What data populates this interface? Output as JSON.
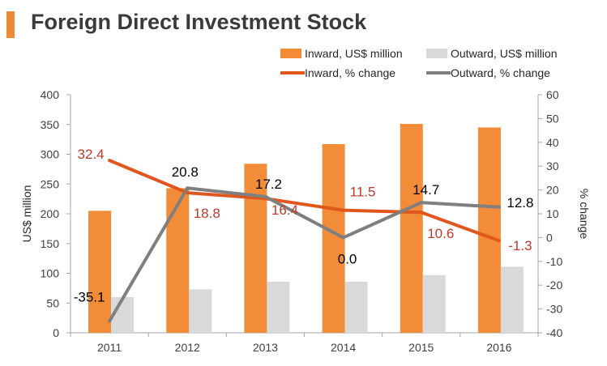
{
  "title": "Foreign Direct Investment Stock",
  "colors": {
    "inward_bar": "#f28c38",
    "outward_bar": "#d9d9d9",
    "inward_line": "#e0561c",
    "outward_line": "#7f7f7f",
    "inward_label": "#c0392b",
    "outward_label": "#000000"
  },
  "chart_data": {
    "type": "bar",
    "categories": [
      "2011",
      "2012",
      "2013",
      "2014",
      "2015",
      "2016"
    ],
    "series": [
      {
        "name": "Inward, US$ million",
        "type": "bar",
        "axis": "left",
        "values": [
          205,
          243,
          284,
          317,
          351,
          345
        ]
      },
      {
        "name": "Outward, US$ million",
        "type": "bar",
        "axis": "left",
        "values": [
          60,
          73,
          86,
          86,
          97,
          111
        ]
      },
      {
        "name": "Inward, % change",
        "type": "line",
        "axis": "right",
        "values": [
          32.4,
          18.8,
          16.4,
          11.5,
          10.6,
          -1.3
        ],
        "labels": [
          "32.4",
          "18.8",
          "16.4",
          "11.5",
          "10.6",
          "-1.3"
        ]
      },
      {
        "name": "Outward, % change",
        "type": "line",
        "axis": "right",
        "values": [
          -35.1,
          20.8,
          17.2,
          0.0,
          14.7,
          12.8
        ],
        "labels": [
          "-35.1",
          "20.8",
          "17.2",
          "0.0",
          "14.7",
          "12.8"
        ]
      }
    ],
    "ylabel": "US$ million",
    "y2label": "% change",
    "ylim": [
      0,
      400
    ],
    "y2lim": [
      -40,
      60
    ],
    "yticks": [
      "0",
      "50",
      "100",
      "150",
      "200",
      "250",
      "300",
      "350",
      "400"
    ],
    "y2ticks": [
      "-40",
      "-30",
      "-20",
      "-10",
      "0",
      "10",
      "20",
      "30",
      "40",
      "50",
      "60"
    ],
    "legend_position": "top-right",
    "grid": false
  }
}
